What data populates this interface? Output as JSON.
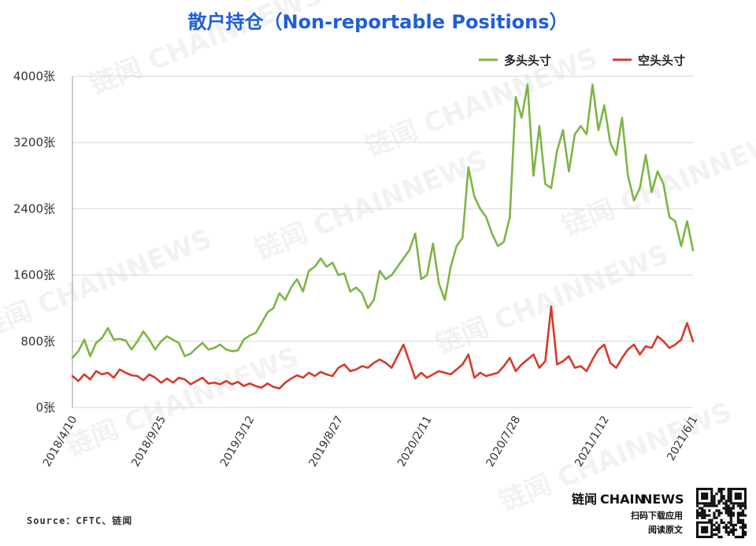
{
  "chart_data": {
    "type": "line",
    "title": "散户持仓（Non-reportable Positions）",
    "xlabel": "",
    "ylabel": "",
    "ylim": [
      0,
      4000
    ],
    "y_ticks": [
      "0张",
      "800张",
      "1600张",
      "2400张",
      "3200张",
      "4000张"
    ],
    "x_ticks": [
      "2018/4/10",
      "2018/9/25",
      "2019/3/12",
      "2019/8/27",
      "2020/2/11",
      "2020/7/28",
      "2021/1/12",
      "2021/6/1"
    ],
    "grid": "horizontal",
    "legend_position": "top-right",
    "series": [
      {
        "name": "多头头寸",
        "color": "#7db545",
        "points": [
          [
            0,
            600
          ],
          [
            1,
            680
          ],
          [
            2,
            820
          ],
          [
            3,
            620
          ],
          [
            4,
            780
          ],
          [
            5,
            840
          ],
          [
            6,
            960
          ],
          [
            7,
            820
          ],
          [
            8,
            830
          ],
          [
            9,
            810
          ],
          [
            10,
            700
          ],
          [
            11,
            800
          ],
          [
            12,
            920
          ],
          [
            13,
            820
          ],
          [
            14,
            700
          ],
          [
            15,
            800
          ],
          [
            16,
            860
          ],
          [
            17,
            820
          ],
          [
            18,
            780
          ],
          [
            19,
            620
          ],
          [
            20,
            650
          ],
          [
            21,
            720
          ],
          [
            22,
            780
          ],
          [
            23,
            700
          ],
          [
            24,
            720
          ],
          [
            25,
            760
          ],
          [
            26,
            700
          ],
          [
            27,
            680
          ],
          [
            28,
            690
          ],
          [
            29,
            820
          ],
          [
            30,
            870
          ],
          [
            31,
            900
          ],
          [
            32,
            1020
          ],
          [
            33,
            1150
          ],
          [
            34,
            1200
          ],
          [
            35,
            1380
          ],
          [
            36,
            1300
          ],
          [
            37,
            1450
          ],
          [
            38,
            1550
          ],
          [
            39,
            1400
          ],
          [
            40,
            1650
          ],
          [
            41,
            1700
          ],
          [
            42,
            1800
          ],
          [
            43,
            1700
          ],
          [
            44,
            1750
          ],
          [
            45,
            1600
          ],
          [
            46,
            1620
          ],
          [
            47,
            1400
          ],
          [
            48,
            1450
          ],
          [
            49,
            1380
          ],
          [
            50,
            1200
          ],
          [
            51,
            1300
          ],
          [
            52,
            1650
          ],
          [
            53,
            1550
          ],
          [
            54,
            1600
          ],
          [
            55,
            1700
          ],
          [
            56,
            1800
          ],
          [
            57,
            1900
          ],
          [
            58,
            2100
          ],
          [
            59,
            1550
          ],
          [
            60,
            1600
          ],
          [
            61,
            1980
          ],
          [
            62,
            1500
          ],
          [
            63,
            1300
          ],
          [
            64,
            1700
          ],
          [
            65,
            1950
          ],
          [
            66,
            2050
          ],
          [
            67,
            2900
          ],
          [
            68,
            2550
          ],
          [
            69,
            2400
          ],
          [
            70,
            2300
          ],
          [
            71,
            2100
          ],
          [
            72,
            1950
          ],
          [
            73,
            2000
          ],
          [
            74,
            2300
          ],
          [
            75,
            3750
          ],
          [
            76,
            3500
          ],
          [
            77,
            3900
          ],
          [
            78,
            2800
          ],
          [
            79,
            3400
          ],
          [
            80,
            2700
          ],
          [
            81,
            2650
          ],
          [
            82,
            3100
          ],
          [
            83,
            3350
          ],
          [
            84,
            2850
          ],
          [
            85,
            3300
          ],
          [
            86,
            3400
          ],
          [
            87,
            3300
          ],
          [
            88,
            3900
          ],
          [
            89,
            3350
          ],
          [
            90,
            3650
          ],
          [
            91,
            3200
          ],
          [
            92,
            3050
          ],
          [
            93,
            3500
          ],
          [
            94,
            2800
          ],
          [
            95,
            2500
          ],
          [
            96,
            2650
          ],
          [
            97,
            3050
          ],
          [
            98,
            2600
          ],
          [
            99,
            2850
          ],
          [
            100,
            2700
          ],
          [
            101,
            2300
          ],
          [
            102,
            2250
          ],
          [
            103,
            1950
          ],
          [
            104,
            2250
          ],
          [
            105,
            1900
          ]
        ]
      },
      {
        "name": "空头头寸",
        "color": "#d63a2a",
        "points": [
          [
            0,
            380
          ],
          [
            1,
            320
          ],
          [
            2,
            400
          ],
          [
            3,
            340
          ],
          [
            4,
            440
          ],
          [
            5,
            400
          ],
          [
            6,
            420
          ],
          [
            7,
            360
          ],
          [
            8,
            460
          ],
          [
            9,
            420
          ],
          [
            10,
            390
          ],
          [
            11,
            380
          ],
          [
            12,
            330
          ],
          [
            13,
            400
          ],
          [
            14,
            360
          ],
          [
            15,
            300
          ],
          [
            16,
            350
          ],
          [
            17,
            300
          ],
          [
            18,
            360
          ],
          [
            19,
            340
          ],
          [
            20,
            280
          ],
          [
            21,
            320
          ],
          [
            22,
            360
          ],
          [
            23,
            290
          ],
          [
            24,
            300
          ],
          [
            25,
            280
          ],
          [
            26,
            320
          ],
          [
            27,
            280
          ],
          [
            28,
            310
          ],
          [
            29,
            260
          ],
          [
            30,
            290
          ],
          [
            31,
            260
          ],
          [
            32,
            240
          ],
          [
            33,
            290
          ],
          [
            34,
            250
          ],
          [
            35,
            230
          ],
          [
            36,
            300
          ],
          [
            37,
            350
          ],
          [
            38,
            390
          ],
          [
            39,
            360
          ],
          [
            40,
            420
          ],
          [
            41,
            380
          ],
          [
            42,
            430
          ],
          [
            43,
            400
          ],
          [
            44,
            380
          ],
          [
            45,
            480
          ],
          [
            46,
            520
          ],
          [
            47,
            440
          ],
          [
            48,
            460
          ],
          [
            49,
            500
          ],
          [
            50,
            480
          ],
          [
            51,
            540
          ],
          [
            52,
            580
          ],
          [
            53,
            540
          ],
          [
            54,
            480
          ],
          [
            55,
            620
          ],
          [
            56,
            760
          ],
          [
            57,
            560
          ],
          [
            58,
            350
          ],
          [
            59,
            420
          ],
          [
            60,
            360
          ],
          [
            61,
            400
          ],
          [
            62,
            440
          ],
          [
            63,
            420
          ],
          [
            64,
            400
          ],
          [
            65,
            460
          ],
          [
            66,
            520
          ],
          [
            67,
            640
          ],
          [
            68,
            360
          ],
          [
            69,
            420
          ],
          [
            70,
            380
          ],
          [
            71,
            400
          ],
          [
            72,
            420
          ],
          [
            73,
            500
          ],
          [
            74,
            600
          ],
          [
            75,
            440
          ],
          [
            76,
            520
          ],
          [
            77,
            580
          ],
          [
            78,
            640
          ],
          [
            79,
            480
          ],
          [
            80,
            560
          ],
          [
            81,
            1220
          ],
          [
            82,
            520
          ],
          [
            83,
            560
          ],
          [
            84,
            620
          ],
          [
            85,
            480
          ],
          [
            86,
            500
          ],
          [
            87,
            440
          ],
          [
            88,
            580
          ],
          [
            89,
            700
          ],
          [
            90,
            760
          ],
          [
            91,
            540
          ],
          [
            92,
            480
          ],
          [
            93,
            600
          ],
          [
            94,
            700
          ],
          [
            95,
            760
          ],
          [
            96,
            640
          ],
          [
            97,
            740
          ],
          [
            98,
            720
          ],
          [
            99,
            860
          ],
          [
            100,
            800
          ],
          [
            101,
            720
          ],
          [
            102,
            760
          ],
          [
            103,
            820
          ],
          [
            104,
            1020
          ],
          [
            105,
            800
          ]
        ]
      }
    ]
  },
  "source_text": "Source：CFTC、链闻",
  "brand": {
    "name_cn": "链闻",
    "name_bold": "CHAIN",
    "name_light": "NEWS",
    "line1": "扫码下载应用",
    "line2": "阅读原文"
  },
  "watermark_text": "链闻 CHAINNEWS"
}
